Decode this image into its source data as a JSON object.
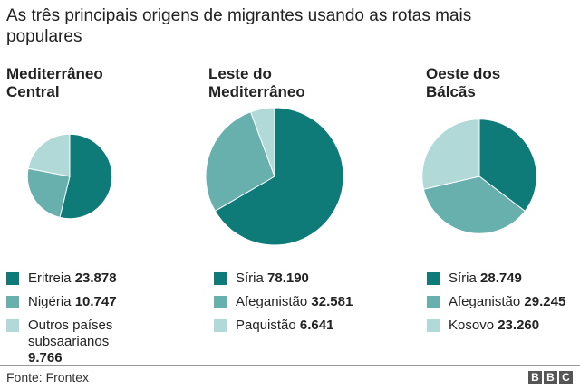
{
  "title": "As três principais origens de migrantes usando as rotas mais populares",
  "colors": [
    "#0e7b78",
    "#67b0ae",
    "#b0d9d8"
  ],
  "chart_data": [
    {
      "type": "pie",
      "title": "Mediterrâneo Central",
      "labels": [
        "Eritreia",
        "Nigéria",
        "Outros países subsaarianos"
      ],
      "value_labels": [
        "23.878",
        "10.747",
        "9.766"
      ],
      "values": [
        23878,
        10747,
        9766
      ]
    },
    {
      "type": "pie",
      "title": "Leste do Mediterrâneo",
      "labels": [
        "Síria",
        "Afeganistão",
        "Paquistão"
      ],
      "value_labels": [
        "78.190",
        "32.581",
        "6.641"
      ],
      "values": [
        78190,
        32581,
        6641
      ]
    },
    {
      "type": "pie",
      "title": "Oeste dos Bálcãs",
      "labels": [
        "Síria",
        "Afeganistão",
        "Kosovo"
      ],
      "value_labels": [
        "28.749",
        "29.245",
        "23.260"
      ],
      "values": [
        28749,
        29245,
        23260
      ]
    }
  ],
  "source": "Fonte: Frontex",
  "logo": [
    "B",
    "B",
    "C"
  ]
}
